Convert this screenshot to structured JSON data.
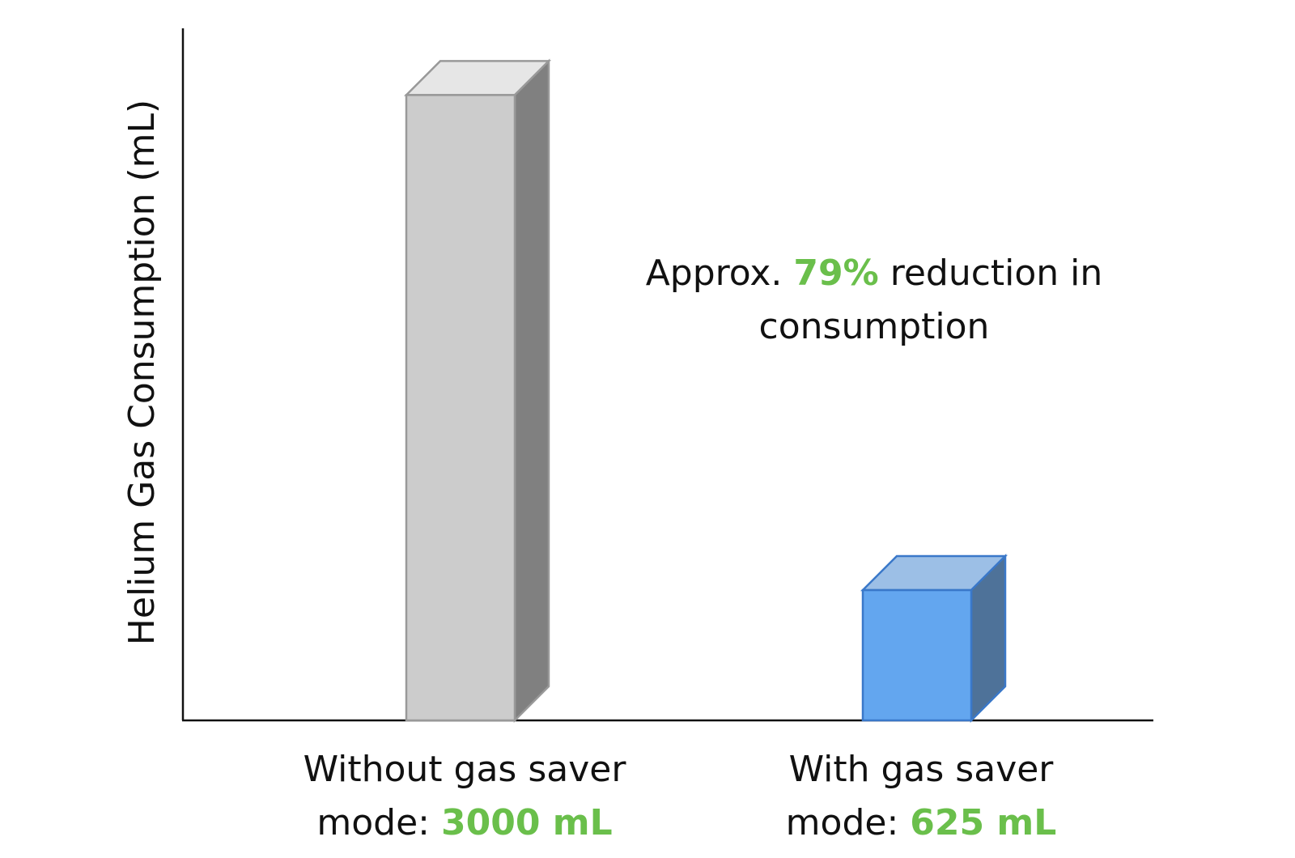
{
  "chart_data": {
    "type": "bar3d",
    "y_label": "Helium Gas Consumption (mL)",
    "categories": [
      "Without gas saver mode:",
      "With gas saver mode:"
    ],
    "values": [
      3000,
      625
    ],
    "value_labels": [
      "3000 mL",
      "625 mL"
    ],
    "value_label_color": "#6abf4b",
    "colors": [
      {
        "front": "#cccccc",
        "top": "#e6e6e6",
        "side": "#808080",
        "stroke": "#999999"
      },
      {
        "front": "#63a6ef",
        "top": "#9cbfe6",
        "side": "#4e7299",
        "stroke": "#3a78c9"
      }
    ],
    "ylim": [
      0,
      3320
    ],
    "annotation": {
      "before": "Approx.",
      "highlight": "79%",
      "after": "reduction in consumption"
    }
  }
}
